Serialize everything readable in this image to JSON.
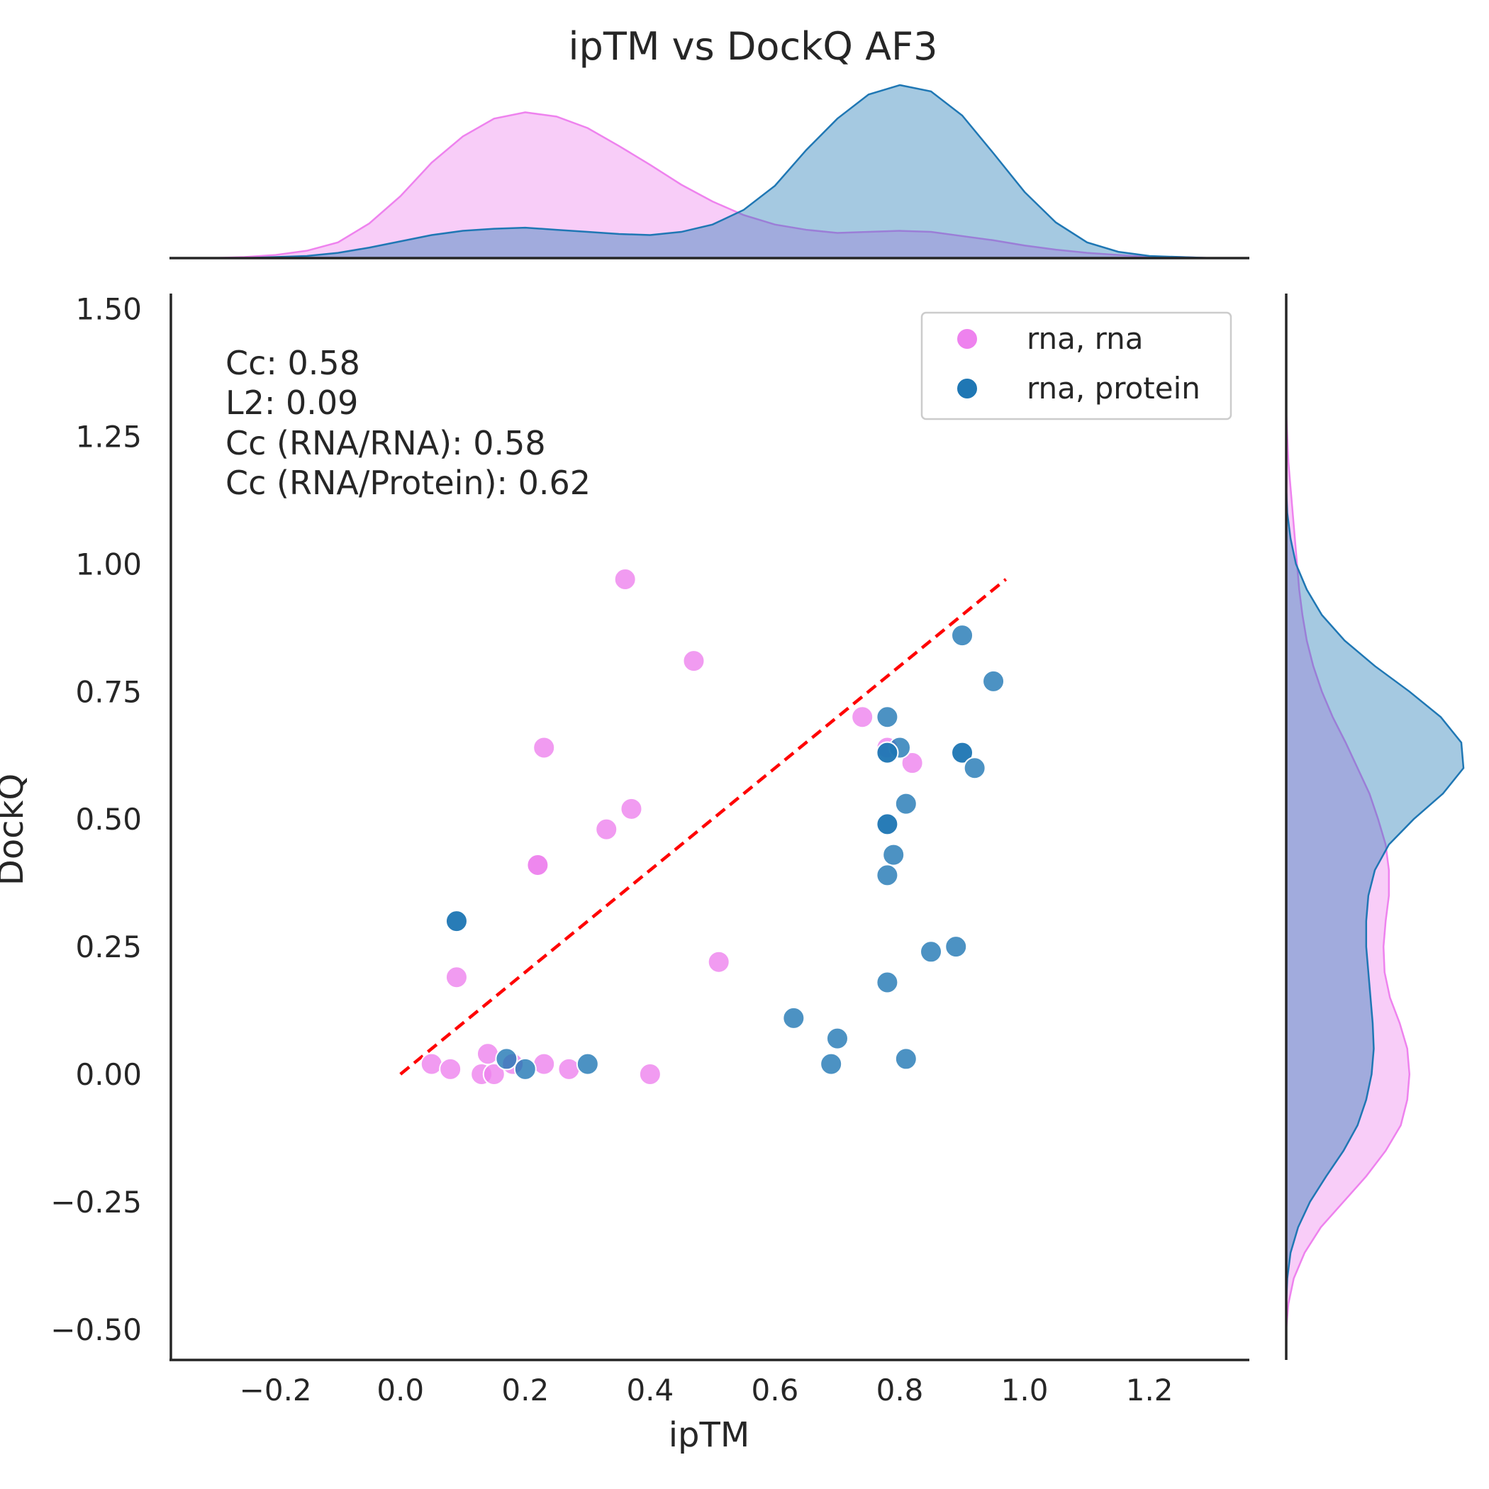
{
  "chart_data": {
    "type": "scatter",
    "title": "ipTM vs DockQ AF3",
    "xlabel": "ipTM",
    "ylabel": "DockQ",
    "xlim": [
      -0.37,
      1.36
    ],
    "ylim": [
      -0.56,
      1.53
    ],
    "xticks": [
      -0.2,
      0.0,
      0.2,
      0.4,
      0.6,
      0.8,
      1.0,
      1.2
    ],
    "xtick_labels": [
      "−0.2",
      "0.0",
      "0.2",
      "0.4",
      "0.6",
      "0.8",
      "1.0",
      "1.2"
    ],
    "yticks": [
      -0.5,
      -0.25,
      0.0,
      0.25,
      0.5,
      0.75,
      1.0,
      1.25,
      1.5
    ],
    "ytick_labels": [
      "−0.50",
      "−0.25",
      "0.00",
      "0.25",
      "0.50",
      "0.75",
      "1.00",
      "1.25",
      "1.50"
    ],
    "grid": false,
    "legend_position": "top-right",
    "annotations": [
      "Cc: 0.58",
      "L2: 0.09",
      "Cc (RNA/RNA): 0.58",
      "Cc (RNA/Protein): 0.62"
    ],
    "reference_line": {
      "style": "dashed",
      "color": "#ff0000",
      "x": [
        0.0,
        0.97
      ],
      "y": [
        0.0,
        0.97
      ]
    },
    "series": [
      {
        "name": "rna, rna",
        "color": "#ee82ee",
        "points": [
          [
            0.36,
            0.97
          ],
          [
            0.47,
            0.81
          ],
          [
            0.23,
            0.64
          ],
          [
            0.37,
            0.52
          ],
          [
            0.33,
            0.48
          ],
          [
            0.22,
            0.41
          ],
          [
            0.22,
            0.41
          ],
          [
            0.09,
            0.19
          ],
          [
            0.74,
            0.7
          ],
          [
            0.78,
            0.64
          ],
          [
            0.82,
            0.61
          ],
          [
            0.51,
            0.22
          ],
          [
            0.05,
            0.02
          ],
          [
            0.08,
            0.01
          ],
          [
            0.13,
            0.0
          ],
          [
            0.14,
            0.04
          ],
          [
            0.15,
            0.0
          ],
          [
            0.18,
            0.02
          ],
          [
            0.23,
            0.02
          ],
          [
            0.27,
            0.01
          ],
          [
            0.4,
            0.0
          ]
        ]
      },
      {
        "name": "rna, protein",
        "color": "#1f77b4",
        "points": [
          [
            0.9,
            0.86
          ],
          [
            0.95,
            0.77
          ],
          [
            0.78,
            0.7
          ],
          [
            0.8,
            0.64
          ],
          [
            0.78,
            0.63
          ],
          [
            0.78,
            0.63
          ],
          [
            0.9,
            0.63
          ],
          [
            0.9,
            0.63
          ],
          [
            0.92,
            0.6
          ],
          [
            0.81,
            0.53
          ],
          [
            0.78,
            0.49
          ],
          [
            0.78,
            0.49
          ],
          [
            0.79,
            0.43
          ],
          [
            0.78,
            0.39
          ],
          [
            0.09,
            0.3
          ],
          [
            0.09,
            0.3
          ],
          [
            0.89,
            0.25
          ],
          [
            0.85,
            0.24
          ],
          [
            0.78,
            0.18
          ],
          [
            0.63,
            0.11
          ],
          [
            0.7,
            0.07
          ],
          [
            0.69,
            0.02
          ],
          [
            0.81,
            0.03
          ],
          [
            0.17,
            0.03
          ],
          [
            0.2,
            0.01
          ],
          [
            0.3,
            0.02
          ]
        ]
      }
    ],
    "marginal_x": {
      "type": "kde",
      "grid": [
        -0.35,
        -0.3,
        -0.25,
        -0.2,
        -0.15,
        -0.1,
        -0.05,
        0.0,
        0.05,
        0.1,
        0.15,
        0.2,
        0.25,
        0.3,
        0.35,
        0.4,
        0.45,
        0.5,
        0.55,
        0.6,
        0.65,
        0.7,
        0.75,
        0.8,
        0.85,
        0.9,
        0.95,
        1.0,
        1.05,
        1.1,
        1.15,
        1.2,
        1.25,
        1.3,
        1.35
      ],
      "rna_rna": [
        0.0,
        0.0,
        0.01,
        0.03,
        0.07,
        0.15,
        0.33,
        0.59,
        0.91,
        1.16,
        1.33,
        1.39,
        1.35,
        1.24,
        1.07,
        0.89,
        0.7,
        0.54,
        0.41,
        0.32,
        0.27,
        0.24,
        0.25,
        0.26,
        0.25,
        0.21,
        0.17,
        0.12,
        0.08,
        0.05,
        0.03,
        0.01,
        0.01,
        0.0,
        0.0
      ],
      "rna_protein": [
        0.0,
        0.0,
        0.0,
        0.01,
        0.02,
        0.05,
        0.1,
        0.16,
        0.22,
        0.26,
        0.28,
        0.29,
        0.27,
        0.25,
        0.23,
        0.22,
        0.25,
        0.32,
        0.46,
        0.69,
        1.03,
        1.33,
        1.56,
        1.65,
        1.59,
        1.36,
        1.0,
        0.63,
        0.34,
        0.15,
        0.06,
        0.02,
        0.01,
        0.0,
        0.0
      ]
    },
    "marginal_y": {
      "type": "kde",
      "grid": [
        -0.55,
        -0.5,
        -0.45,
        -0.4,
        -0.35,
        -0.3,
        -0.25,
        -0.2,
        -0.15,
        -0.1,
        -0.05,
        0.0,
        0.05,
        0.1,
        0.15,
        0.2,
        0.25,
        0.3,
        0.35,
        0.4,
        0.45,
        0.5,
        0.55,
        0.6,
        0.65,
        0.7,
        0.75,
        0.8,
        0.85,
        0.9,
        0.95,
        1.0,
        1.05,
        1.1,
        1.15,
        1.2,
        1.25,
        1.3
      ],
      "rna_rna": [
        0.0,
        0.0,
        0.02,
        0.07,
        0.17,
        0.32,
        0.53,
        0.74,
        0.92,
        1.06,
        1.12,
        1.14,
        1.12,
        1.05,
        0.96,
        0.91,
        0.9,
        0.92,
        0.95,
        0.95,
        0.92,
        0.85,
        0.77,
        0.66,
        0.55,
        0.43,
        0.33,
        0.25,
        0.19,
        0.15,
        0.12,
        0.1,
        0.08,
        0.06,
        0.04,
        0.02,
        0.01,
        0.0
      ],
      "rna_protein": [
        0.0,
        0.0,
        0.0,
        0.01,
        0.04,
        0.11,
        0.22,
        0.37,
        0.53,
        0.66,
        0.74,
        0.79,
        0.81,
        0.8,
        0.78,
        0.76,
        0.74,
        0.74,
        0.76,
        0.82,
        0.95,
        1.18,
        1.45,
        1.64,
        1.62,
        1.43,
        1.14,
        0.82,
        0.54,
        0.33,
        0.19,
        0.09,
        0.04,
        0.01,
        0.0,
        0.0,
        0.0,
        0.0
      ]
    }
  }
}
